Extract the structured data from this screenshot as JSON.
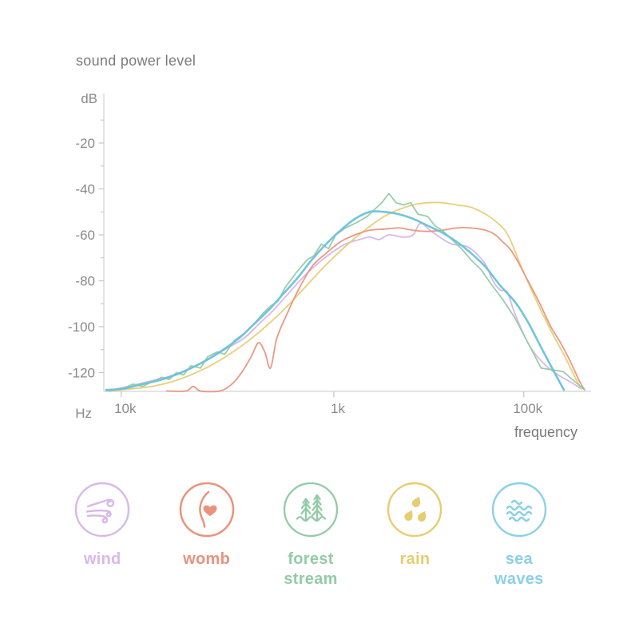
{
  "page": {
    "background": "#ffffff"
  },
  "chart_data": {
    "type": "line",
    "title": "sound power level",
    "x_axis": {
      "unit_label": "Hz",
      "axis_label": "frequency",
      "scale": "log-frequency, positions stored as fraction 0-1 of axis length",
      "ticks": [
        {
          "label": "10k",
          "pos": 0.036
        },
        {
          "label": "1k",
          "pos": 0.476
        },
        {
          "label": "100k",
          "pos": 0.869
        }
      ]
    },
    "y_axis": {
      "unit_label": "dB",
      "range": [
        0,
        -130
      ],
      "major_ticks": [
        -20,
        -40,
        -60,
        -80,
        -100,
        -120
      ],
      "minor_ticks": [
        -10,
        -30,
        -50,
        -70,
        -90,
        -110
      ]
    },
    "grid": false,
    "legend_position": "bottom",
    "series": [
      {
        "id": "wind",
        "name": "wind",
        "color": "#d8b4e8",
        "width": 1.8,
        "smooth": true,
        "points": [
          [
            0.005,
            -128
          ],
          [
            0.05,
            -126
          ],
          [
            0.09,
            -124
          ],
          [
            0.13,
            -122
          ],
          [
            0.17,
            -119
          ],
          [
            0.21,
            -115
          ],
          [
            0.25,
            -110
          ],
          [
            0.29,
            -105
          ],
          [
            0.32,
            -99
          ],
          [
            0.35,
            -93
          ],
          [
            0.38,
            -86
          ],
          [
            0.41,
            -79
          ],
          [
            0.44,
            -73
          ],
          [
            0.47,
            -68
          ],
          [
            0.5,
            -64
          ],
          [
            0.53,
            -62
          ],
          [
            0.55,
            -61
          ],
          [
            0.57,
            -62
          ],
          [
            0.59,
            -60
          ],
          [
            0.62,
            -61
          ],
          [
            0.64,
            -60
          ],
          [
            0.655,
            -55
          ],
          [
            0.675,
            -58
          ],
          [
            0.695,
            -61
          ],
          [
            0.72,
            -64
          ],
          [
            0.75,
            -65
          ],
          [
            0.77,
            -68
          ],
          [
            0.79,
            -73
          ],
          [
            0.805,
            -80
          ],
          [
            0.82,
            -84
          ],
          [
            0.835,
            -85
          ],
          [
            0.85,
            -94
          ],
          [
            0.88,
            -108
          ],
          [
            0.91,
            -116
          ],
          [
            0.94,
            -121
          ],
          [
            0.965,
            -124
          ],
          [
            0.988,
            -127
          ]
        ]
      },
      {
        "id": "rain",
        "name": "rain",
        "color": "#e7cc72",
        "width": 1.8,
        "smooth": true,
        "points": [
          [
            0.015,
            -128
          ],
          [
            0.06,
            -127
          ],
          [
            0.1,
            -126
          ],
          [
            0.14,
            -124
          ],
          [
            0.18,
            -121
          ],
          [
            0.22,
            -117
          ],
          [
            0.26,
            -112
          ],
          [
            0.3,
            -106
          ],
          [
            0.34,
            -99
          ],
          [
            0.38,
            -91
          ],
          [
            0.42,
            -82
          ],
          [
            0.46,
            -73
          ],
          [
            0.5,
            -65
          ],
          [
            0.54,
            -58
          ],
          [
            0.58,
            -52
          ],
          [
            0.61,
            -49
          ],
          [
            0.64,
            -47
          ],
          [
            0.67,
            -46
          ],
          [
            0.7,
            -46
          ],
          [
            0.73,
            -47
          ],
          [
            0.76,
            -48
          ],
          [
            0.79,
            -51
          ],
          [
            0.81,
            -54
          ],
          [
            0.83,
            -58
          ],
          [
            0.845,
            -64
          ],
          [
            0.864,
            -74
          ],
          [
            0.898,
            -90
          ],
          [
            0.926,
            -102
          ],
          [
            0.954,
            -113
          ],
          [
            0.975,
            -122
          ],
          [
            0.988,
            -127
          ]
        ]
      },
      {
        "id": "womb",
        "name": "womb",
        "color": "#e9937c",
        "width": 1.8,
        "smooth": true,
        "points": [
          [
            0.13,
            -128
          ],
          [
            0.17,
            -128
          ],
          [
            0.185,
            -126
          ],
          [
            0.2,
            -128
          ],
          [
            0.24,
            -128
          ],
          [
            0.265,
            -125
          ],
          [
            0.285,
            -120
          ],
          [
            0.305,
            -113
          ],
          [
            0.32,
            -107
          ],
          [
            0.333,
            -111
          ],
          [
            0.345,
            -118
          ],
          [
            0.358,
            -105
          ],
          [
            0.38,
            -94
          ],
          [
            0.4,
            -85
          ],
          [
            0.43,
            -74
          ],
          [
            0.46,
            -68
          ],
          [
            0.49,
            -63
          ],
          [
            0.52,
            -60
          ],
          [
            0.55,
            -58
          ],
          [
            0.58,
            -57.5
          ],
          [
            0.61,
            -57
          ],
          [
            0.64,
            -58
          ],
          [
            0.67,
            -58.5
          ],
          [
            0.7,
            -58
          ],
          [
            0.73,
            -57
          ],
          [
            0.76,
            -57
          ],
          [
            0.79,
            -58
          ],
          [
            0.81,
            -60
          ],
          [
            0.825,
            -63
          ],
          [
            0.84,
            -66
          ],
          [
            0.855,
            -71
          ],
          [
            0.875,
            -79
          ],
          [
            0.9,
            -89
          ],
          [
            0.925,
            -100
          ],
          [
            0.945,
            -107
          ],
          [
            0.965,
            -115
          ],
          [
            0.985,
            -124
          ],
          [
            0.995,
            -127.5
          ]
        ]
      },
      {
        "id": "forest-stream",
        "name": "forest stream",
        "color": "#94cba6",
        "width": 1.8,
        "smooth": false,
        "points": [
          [
            0.01,
            -128
          ],
          [
            0.04,
            -127
          ],
          [
            0.06,
            -125
          ],
          [
            0.08,
            -126
          ],
          [
            0.1,
            -124
          ],
          [
            0.12,
            -122
          ],
          [
            0.135,
            -123
          ],
          [
            0.15,
            -120
          ],
          [
            0.165,
            -121
          ],
          [
            0.18,
            -117
          ],
          [
            0.2,
            -118
          ],
          [
            0.215,
            -113
          ],
          [
            0.235,
            -111
          ],
          [
            0.25,
            -112
          ],
          [
            0.27,
            -106
          ],
          [
            0.29,
            -103
          ],
          [
            0.31,
            -99
          ],
          [
            0.33,
            -94
          ],
          [
            0.345,
            -91
          ],
          [
            0.36,
            -89
          ],
          [
            0.375,
            -83
          ],
          [
            0.4,
            -76
          ],
          [
            0.42,
            -71
          ],
          [
            0.435,
            -69
          ],
          [
            0.45,
            -64
          ],
          [
            0.465,
            -66
          ],
          [
            0.48,
            -60
          ],
          [
            0.5,
            -57
          ],
          [
            0.52,
            -55
          ],
          [
            0.545,
            -52
          ],
          [
            0.56,
            -49
          ],
          [
            0.575,
            -46
          ],
          [
            0.59,
            -42
          ],
          [
            0.605,
            -46
          ],
          [
            0.62,
            -47
          ],
          [
            0.635,
            -46
          ],
          [
            0.65,
            -51
          ],
          [
            0.67,
            -52
          ],
          [
            0.685,
            -56
          ],
          [
            0.7,
            -58
          ],
          [
            0.72,
            -62
          ],
          [
            0.74,
            -66
          ],
          [
            0.76,
            -71
          ],
          [
            0.78,
            -75
          ],
          [
            0.8,
            -81
          ],
          [
            0.825,
            -88
          ],
          [
            0.85,
            -96
          ],
          [
            0.87,
            -104
          ],
          [
            0.89,
            -112
          ],
          [
            0.905,
            -118
          ],
          [
            0.95,
            -119.5
          ],
          [
            0.975,
            -124
          ],
          [
            0.995,
            -127.5
          ]
        ]
      },
      {
        "id": "sea-waves",
        "name": "sea waves",
        "color": "#67c3da",
        "width": 2.6,
        "smooth": true,
        "points": [
          [
            0.005,
            -127.5
          ],
          [
            0.04,
            -127
          ],
          [
            0.08,
            -125
          ],
          [
            0.12,
            -123
          ],
          [
            0.16,
            -120
          ],
          [
            0.2,
            -116
          ],
          [
            0.24,
            -111
          ],
          [
            0.28,
            -105
          ],
          [
            0.31,
            -99
          ],
          [
            0.34,
            -93
          ],
          [
            0.37,
            -86
          ],
          [
            0.4,
            -79
          ],
          [
            0.43,
            -71
          ],
          [
            0.46,
            -64
          ],
          [
            0.49,
            -58
          ],
          [
            0.52,
            -53
          ],
          [
            0.55,
            -50
          ],
          [
            0.58,
            -50
          ],
          [
            0.61,
            -51
          ],
          [
            0.64,
            -53
          ],
          [
            0.67,
            -56
          ],
          [
            0.7,
            -59
          ],
          [
            0.73,
            -63
          ],
          [
            0.76,
            -68
          ],
          [
            0.79,
            -74
          ],
          [
            0.82,
            -82
          ],
          [
            0.85,
            -89
          ],
          [
            0.875,
            -97
          ],
          [
            0.9,
            -107
          ],
          [
            0.925,
            -117
          ],
          [
            0.952,
            -127.5
          ]
        ]
      }
    ],
    "style": {
      "axis_color": "#dcdcdc",
      "tick_color": "#c9c9c9",
      "label_color": "#8a8a8a",
      "title_color": "#7a7a7a"
    }
  },
  "legend": {
    "items": [
      {
        "id": "wind",
        "label": "wind",
        "color": "#d9b8ea",
        "icon": "wind-icon"
      },
      {
        "id": "womb",
        "label": "womb",
        "color": "#e9937c",
        "icon": "womb-icon"
      },
      {
        "id": "forest-stream",
        "label": "forest stream",
        "color": "#94cba6",
        "icon": "forest-stream-icon"
      },
      {
        "id": "rain",
        "label": "rain",
        "color": "#e7cc72",
        "icon": "rain-drops-icon"
      },
      {
        "id": "sea-waves",
        "label": "sea waves",
        "color": "#8bd0e4",
        "icon": "sea-waves-icon"
      }
    ]
  }
}
